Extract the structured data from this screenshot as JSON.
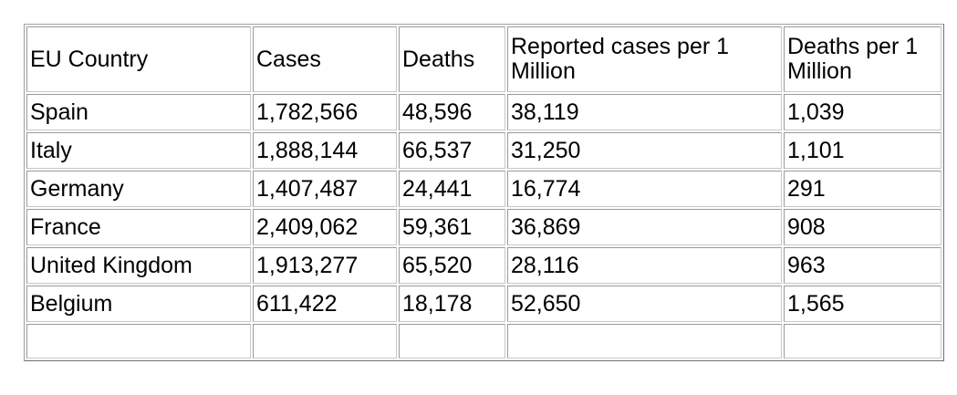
{
  "table": {
    "headers": [
      "EU Country",
      "Cases",
      "Deaths",
      "Reported cases per 1 Million",
      "Deaths per 1 Million"
    ],
    "rows": [
      [
        "Spain",
        "1,782,566",
        "48,596",
        "38,119",
        "1,039"
      ],
      [
        "Italy",
        "1,888,144",
        "66,537",
        "31,250",
        "1,101"
      ],
      [
        "Germany",
        "1,407,487",
        "24,441",
        "16,774",
        "291"
      ],
      [
        "France",
        "2,409,062",
        "59,361",
        "36,869",
        "908"
      ],
      [
        "United Kingdom",
        "1,913,277",
        "65,520",
        "28,116",
        "963"
      ],
      [
        "Belgium",
        "611,422",
        "18,178",
        "52,650",
        "1,565"
      ],
      [
        "",
        "",
        "",
        "",
        ""
      ]
    ]
  }
}
